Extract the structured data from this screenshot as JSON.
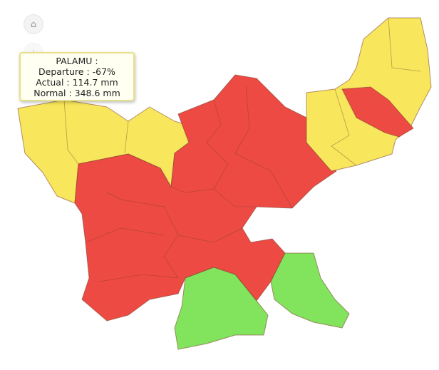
{
  "controls": {
    "home_icon": "home-icon",
    "zoom_in_icon": "plus-icon",
    "zoom_in_label": "+"
  },
  "tooltip": {
    "district": "PALAMU :",
    "departure": "Departure : -67%",
    "actual": "Actual : 114.7 mm",
    "normal": "Normal : 348.6 mm"
  },
  "colors": {
    "deficient": "#ee4a44",
    "normal_yellow": "#f8e65c",
    "excess_green": "#82e35d",
    "border": "#b0443c"
  },
  "regions": [
    {
      "category": "yellow",
      "color": "#f8e65c"
    },
    {
      "category": "red",
      "color": "#ee4a44"
    },
    {
      "category": "green",
      "color": "#82e35d"
    }
  ]
}
